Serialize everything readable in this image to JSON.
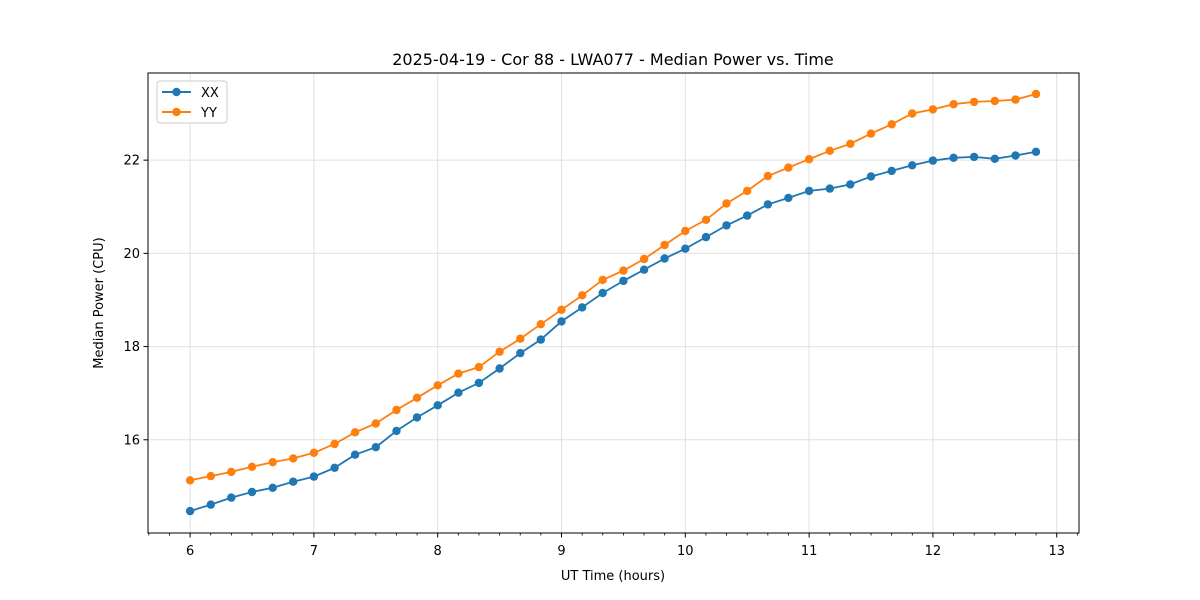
{
  "figure": {
    "background": "#ffffff",
    "frame_color": "#000000",
    "grid_color": "#e0e0e0",
    "legend_border_color": "#cccccc",
    "legend_background": "#ffffff"
  },
  "chart_data": {
    "type": "line",
    "title": "2025-04-19 - Cor 88 - LWA077 - Median Power vs. Time",
    "xlabel": "UT Time (hours)",
    "ylabel": "Median Power (CPU)",
    "xlim": [
      5.66,
      13.18
    ],
    "ylim": [
      14.0,
      23.87
    ],
    "x_major_ticks": [
      6,
      7,
      8,
      9,
      10,
      11,
      12,
      13
    ],
    "x_minor_ticks_per_interval": 6,
    "y_major_ticks": [
      16,
      18,
      20,
      22
    ],
    "grid": true,
    "legend_position": "upper-left",
    "marker": "circle",
    "x": [
      6.0,
      6.167,
      6.333,
      6.5,
      6.667,
      6.833,
      7.0,
      7.167,
      7.333,
      7.5,
      7.667,
      7.833,
      8.0,
      8.167,
      8.333,
      8.5,
      8.667,
      8.833,
      9.0,
      9.167,
      9.333,
      9.5,
      9.667,
      9.833,
      10.0,
      10.167,
      10.333,
      10.5,
      10.667,
      10.833,
      11.0,
      11.167,
      11.333,
      11.5,
      11.667,
      11.833,
      12.0,
      12.167,
      12.333,
      12.5,
      12.667,
      12.833
    ],
    "series": [
      {
        "name": "XX",
        "color": "#1f77b4",
        "values": [
          14.47,
          14.61,
          14.76,
          14.88,
          14.97,
          15.1,
          15.21,
          15.4,
          15.68,
          15.84,
          16.19,
          16.48,
          16.74,
          17.01,
          17.22,
          17.53,
          17.86,
          18.15,
          18.54,
          18.84,
          19.15,
          19.41,
          19.65,
          19.89,
          20.1,
          20.35,
          20.6,
          20.81,
          21.05,
          21.19,
          21.34,
          21.39,
          21.48,
          21.65,
          21.77,
          21.89,
          21.99,
          22.05,
          22.07,
          22.03,
          22.1,
          22.18
        ]
      },
      {
        "name": "YY",
        "color": "#ff7f0e",
        "values": [
          15.13,
          15.22,
          15.31,
          15.42,
          15.52,
          15.6,
          15.72,
          15.91,
          16.16,
          16.35,
          16.64,
          16.9,
          17.17,
          17.42,
          17.56,
          17.89,
          18.17,
          18.48,
          18.79,
          19.1,
          19.43,
          19.63,
          19.88,
          20.18,
          20.48,
          20.72,
          21.07,
          21.34,
          21.66,
          21.84,
          22.02,
          22.2,
          22.35,
          22.57,
          22.77,
          23.0,
          23.09,
          23.2,
          23.25,
          23.27,
          23.3,
          23.42
        ]
      }
    ]
  }
}
